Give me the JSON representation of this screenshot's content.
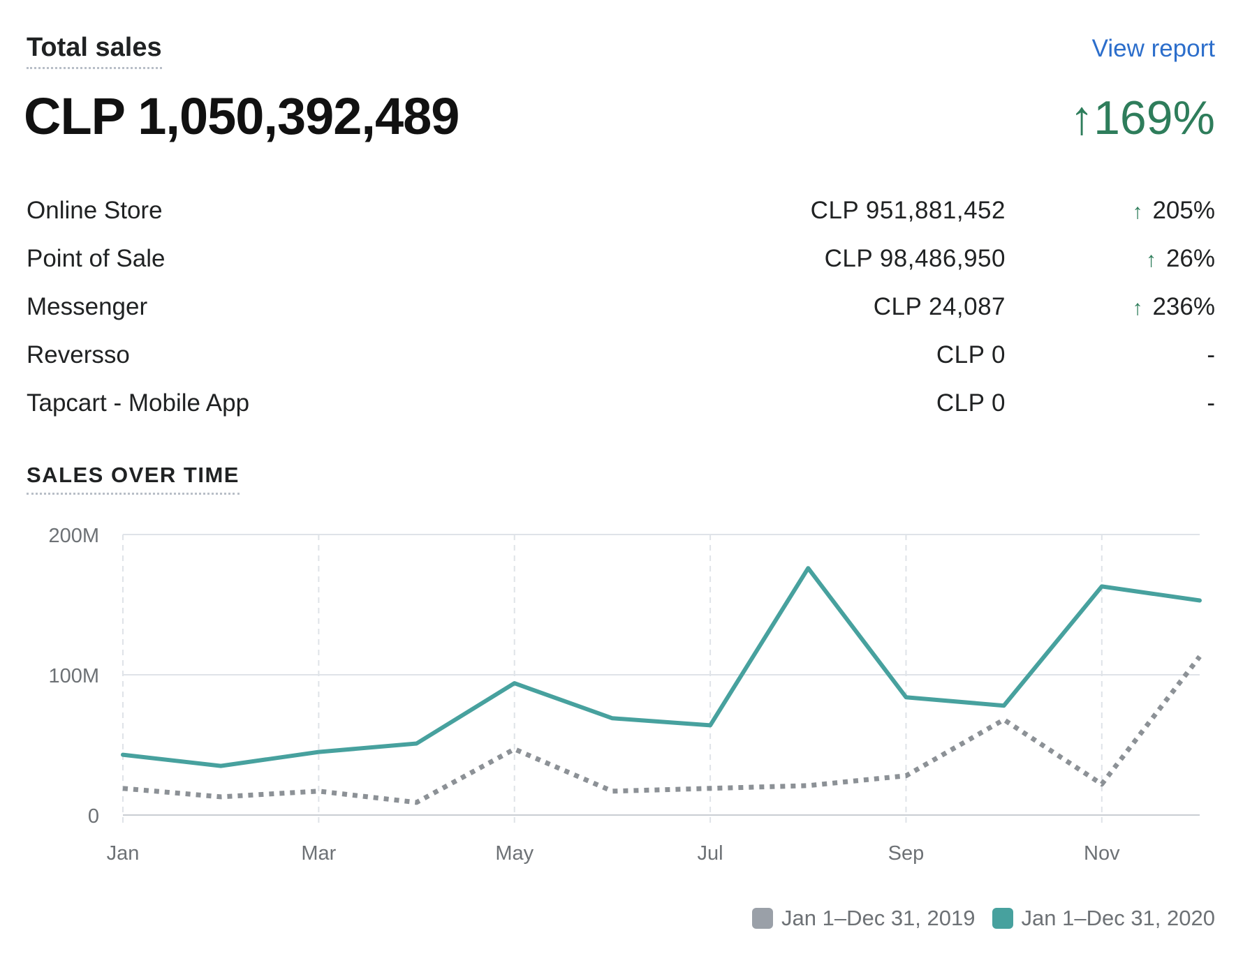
{
  "header": {
    "title": "Total sales",
    "view_report": "View report",
    "total": "CLP 1,050,392,489",
    "change_arrow": "↑",
    "change": "169%",
    "change_color": "#2e7d5b"
  },
  "channels": [
    {
      "name": "Online Store",
      "amount": "CLP 951,881,452",
      "arrow": "↑",
      "pct": "205%"
    },
    {
      "name": "Point of Sale",
      "amount": "CLP 98,486,950",
      "arrow": "↑",
      "pct": "26%"
    },
    {
      "name": "Messenger",
      "amount": "CLP 24,087",
      "arrow": "↑",
      "pct": "236%"
    },
    {
      "name": "Reversso",
      "amount": "CLP 0",
      "arrow": "",
      "pct": "-"
    },
    {
      "name": "Tapcart - Mobile App",
      "amount": "CLP 0",
      "arrow": "",
      "pct": "-"
    }
  ],
  "section_title": "SALES OVER TIME",
  "chart_data": {
    "type": "line",
    "title": "",
    "xlabel": "",
    "ylabel": "",
    "ylim": [
      0,
      200
    ],
    "yticks": [
      0,
      100,
      200
    ],
    "ytick_labels": [
      "0",
      "100M",
      "200M"
    ],
    "x": [
      "Jan",
      "Feb",
      "Mar",
      "Apr",
      "May",
      "Jun",
      "Jul",
      "Aug",
      "Sep",
      "Oct",
      "Nov",
      "Dec"
    ],
    "xtick_labels": [
      "Jan",
      "",
      "Mar",
      "",
      "May",
      "",
      "Jul",
      "",
      "Sep",
      "",
      "Nov",
      ""
    ],
    "grid": true,
    "legend_position": "bottom-right",
    "series": [
      {
        "name": "Jan 1–Dec 31, 2019",
        "color": "#8c9196",
        "style": "dotted",
        "values": [
          19,
          13,
          17,
          9,
          47,
          17,
          19,
          21,
          28,
          68,
          22,
          113
        ]
      },
      {
        "name": "Jan 1–Dec 31, 2020",
        "color": "#47a19e",
        "style": "solid",
        "values": [
          43,
          35,
          45,
          51,
          94,
          69,
          64,
          176,
          84,
          78,
          163,
          153
        ]
      }
    ]
  }
}
